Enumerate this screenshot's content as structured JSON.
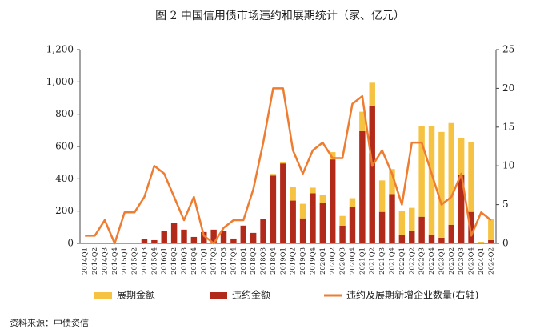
{
  "chart_data": {
    "type": "bar",
    "title": "图 2  中国信用债市场违约和展期统计（家、亿元）",
    "source": "资料来源：中债资信",
    "categories": [
      "2014Q1",
      "2014Q2",
      "2014Q3",
      "2014Q4",
      "2015Q1",
      "2015Q2",
      "2015Q3",
      "2015Q4",
      "2016Q1",
      "2016Q2",
      "2016Q3",
      "2016Q4",
      "2017Q1",
      "2017Q2",
      "2017Q3",
      "2017Q4",
      "2018Q1",
      "2018Q2",
      "2018Q3",
      "2018Q4",
      "2019Q1",
      "2019Q2",
      "2019Q3",
      "2019Q4",
      "2020Q1",
      "2020Q2",
      "2020Q3",
      "2020Q4",
      "2021Q1",
      "2021Q2",
      "2021Q3",
      "2021Q4",
      "2022Q1",
      "2022Q2",
      "2022Q3",
      "2022Q4",
      "2023Q1",
      "2023Q2",
      "2023Q3",
      "2023Q4",
      "2024Q1",
      "2024Q2"
    ],
    "series": [
      {
        "name": "展期金额",
        "color": "#f5c242",
        "values": [
          0,
          0,
          0,
          0,
          0,
          0,
          0,
          0,
          0,
          0,
          0,
          0,
          0,
          0,
          0,
          0,
          0,
          0,
          0,
          10,
          10,
          85,
          90,
          35,
          50,
          45,
          60,
          55,
          120,
          145,
          195,
          155,
          150,
          140,
          560,
          670,
          655,
          630,
          225,
          430,
          5,
          130
        ]
      },
      {
        "name": "违约金额",
        "color": "#b22a1a",
        "values": [
          5,
          0,
          0,
          0,
          0,
          0,
          25,
          20,
          75,
          125,
          85,
          40,
          70,
          85,
          75,
          30,
          110,
          65,
          150,
          420,
          495,
          265,
          155,
          310,
          250,
          520,
          110,
          225,
          695,
          850,
          195,
          305,
          50,
          80,
          165,
          55,
          35,
          115,
          425,
          195,
          5,
          20
        ]
      },
      {
        "name": "违约及展期新增企业数量(右轴)",
        "color": "#ee7d31",
        "axis": "y2",
        "type": "line",
        "values": [
          1,
          1,
          3,
          0,
          4,
          4,
          6,
          10,
          9,
          6,
          3,
          6,
          1,
          0,
          2,
          3,
          3,
          7,
          13,
          20,
          20,
          12,
          9,
          12,
          13,
          11,
          11,
          18,
          19,
          10,
          12,
          9,
          5,
          13,
          13,
          9,
          5,
          6,
          9,
          1,
          4,
          3
        ]
      }
    ],
    "ylim": [
      0,
      1200
    ],
    "yticks": [
      0,
      200,
      400,
      600,
      800,
      {
        "value": 1000,
        "label": "1,000"
      },
      {
        "value": 1200,
        "label": "1,200"
      }
    ],
    "y2lim": [
      0,
      25
    ],
    "y2ticks": [
      0,
      5,
      10,
      15,
      20,
      25
    ],
    "grid": false,
    "legend": "bottom"
  }
}
